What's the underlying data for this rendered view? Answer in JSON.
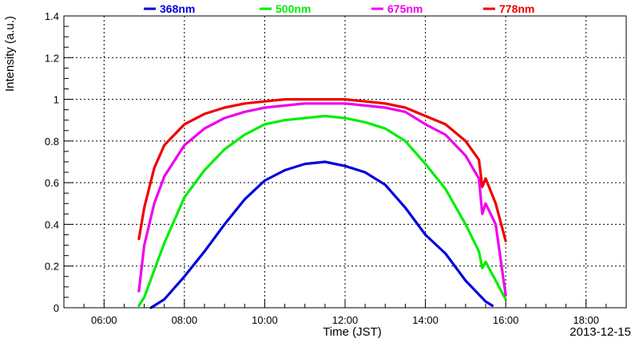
{
  "chart_data": {
    "type": "line",
    "xlabel": "Time (JST)",
    "ylabel": "Intensity (a.u.)",
    "date_label": "2013-12-15",
    "xlim": [
      "05:00",
      "19:00"
    ],
    "ylim": [
      0,
      1.4
    ],
    "x_ticks": [
      "06:00",
      "08:00",
      "10:00",
      "12:00",
      "14:00",
      "16:00",
      "18:00"
    ],
    "y_ticks": [
      "0",
      "0.2",
      "0.4",
      "0.6",
      "0.8",
      "1",
      "1.2",
      "1.4"
    ],
    "grid": true,
    "legend_position": "top",
    "series": [
      {
        "name": "368nm",
        "color": "#0000dd",
        "points": [
          [
            "07:10",
            0.0
          ],
          [
            "07:30",
            0.04
          ],
          [
            "08:00",
            0.15
          ],
          [
            "08:30",
            0.27
          ],
          [
            "09:00",
            0.4
          ],
          [
            "09:30",
            0.52
          ],
          [
            "10:00",
            0.61
          ],
          [
            "10:30",
            0.66
          ],
          [
            "11:00",
            0.69
          ],
          [
            "11:30",
            0.7
          ],
          [
            "12:00",
            0.68
          ],
          [
            "12:30",
            0.65
          ],
          [
            "13:00",
            0.59
          ],
          [
            "13:30",
            0.48
          ],
          [
            "14:00",
            0.35
          ],
          [
            "14:30",
            0.26
          ],
          [
            "15:00",
            0.13
          ],
          [
            "15:30",
            0.03
          ],
          [
            "15:40",
            0.01
          ]
        ]
      },
      {
        "name": "500nm",
        "color": "#00ee00",
        "points": [
          [
            "06:52",
            0.01
          ],
          [
            "07:00",
            0.05
          ],
          [
            "07:15",
            0.18
          ],
          [
            "07:30",
            0.31
          ],
          [
            "08:00",
            0.53
          ],
          [
            "08:30",
            0.66
          ],
          [
            "09:00",
            0.76
          ],
          [
            "09:30",
            0.83
          ],
          [
            "10:00",
            0.88
          ],
          [
            "10:30",
            0.9
          ],
          [
            "11:00",
            0.91
          ],
          [
            "11:30",
            0.92
          ],
          [
            "12:00",
            0.91
          ],
          [
            "12:30",
            0.89
          ],
          [
            "13:00",
            0.86
          ],
          [
            "13:30",
            0.8
          ],
          [
            "14:00",
            0.69
          ],
          [
            "14:30",
            0.57
          ],
          [
            "15:00",
            0.4
          ],
          [
            "15:20",
            0.27
          ],
          [
            "15:25",
            0.19
          ],
          [
            "15:30",
            0.22
          ],
          [
            "15:45",
            0.13
          ],
          [
            "16:00",
            0.04
          ]
        ]
      },
      {
        "name": "675nm",
        "color": "#ee00ee",
        "points": [
          [
            "06:52",
            0.08
          ],
          [
            "07:00",
            0.3
          ],
          [
            "07:15",
            0.5
          ],
          [
            "07:30",
            0.63
          ],
          [
            "08:00",
            0.78
          ],
          [
            "08:30",
            0.86
          ],
          [
            "09:00",
            0.91
          ],
          [
            "09:30",
            0.94
          ],
          [
            "10:00",
            0.96
          ],
          [
            "10:30",
            0.97
          ],
          [
            "11:00",
            0.98
          ],
          [
            "11:30",
            0.98
          ],
          [
            "12:00",
            0.98
          ],
          [
            "12:30",
            0.97
          ],
          [
            "13:00",
            0.96
          ],
          [
            "13:30",
            0.94
          ],
          [
            "14:00",
            0.88
          ],
          [
            "14:30",
            0.83
          ],
          [
            "15:00",
            0.73
          ],
          [
            "15:20",
            0.62
          ],
          [
            "15:25",
            0.45
          ],
          [
            "15:30",
            0.5
          ],
          [
            "15:45",
            0.4
          ],
          [
            "16:00",
            0.06
          ]
        ]
      },
      {
        "name": "778nm",
        "color": "#ee0000",
        "points": [
          [
            "06:52",
            0.33
          ],
          [
            "07:00",
            0.48
          ],
          [
            "07:15",
            0.67
          ],
          [
            "07:30",
            0.78
          ],
          [
            "08:00",
            0.88
          ],
          [
            "08:30",
            0.93
          ],
          [
            "09:00",
            0.96
          ],
          [
            "09:30",
            0.98
          ],
          [
            "10:00",
            0.99
          ],
          [
            "10:30",
            1.0
          ],
          [
            "11:00",
            1.0
          ],
          [
            "11:30",
            1.0
          ],
          [
            "12:00",
            1.0
          ],
          [
            "12:30",
            0.99
          ],
          [
            "13:00",
            0.98
          ],
          [
            "13:30",
            0.96
          ],
          [
            "14:00",
            0.92
          ],
          [
            "14:30",
            0.88
          ],
          [
            "15:00",
            0.8
          ],
          [
            "15:20",
            0.71
          ],
          [
            "15:25",
            0.58
          ],
          [
            "15:30",
            0.62
          ],
          [
            "15:45",
            0.5
          ],
          [
            "16:00",
            0.32
          ]
        ]
      }
    ]
  }
}
